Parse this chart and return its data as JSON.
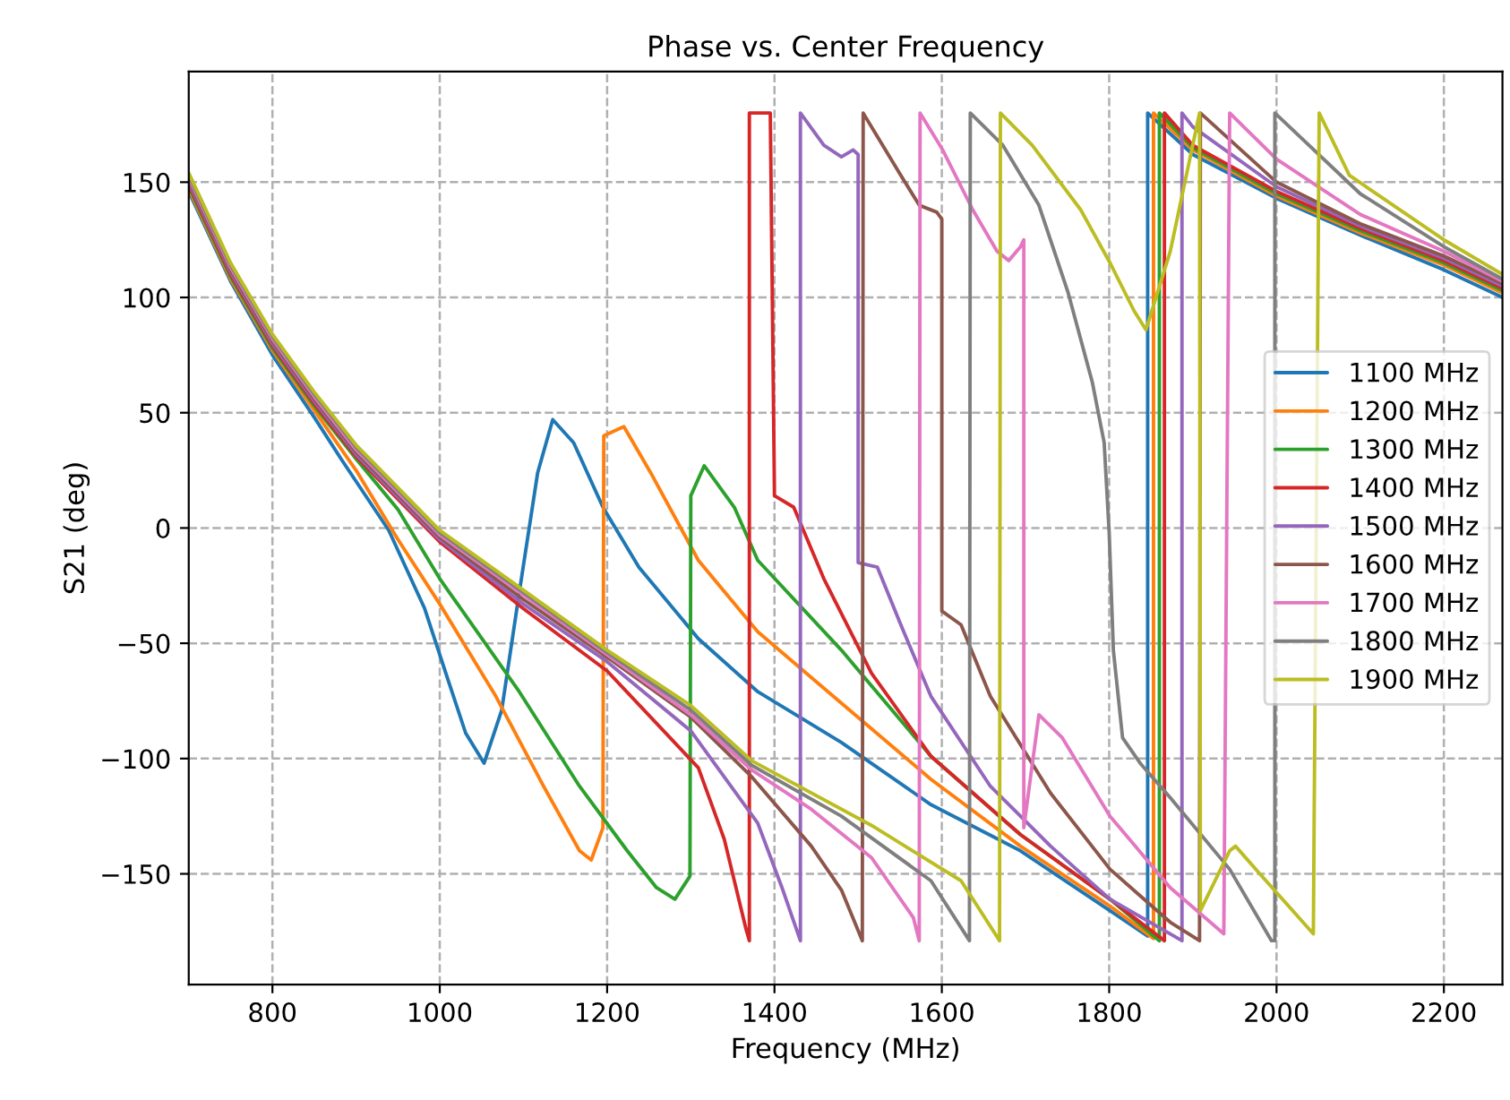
{
  "chart_data": {
    "type": "line",
    "title": "Phase vs. Center Frequency",
    "xlabel": "Frequency (MHz)",
    "ylabel": "S21 (deg)",
    "xlim": [
      700,
      2270
    ],
    "ylim": [
      -198,
      198
    ],
    "xticks": [
      800,
      1000,
      1200,
      1400,
      1600,
      1800,
      2000,
      2200
    ],
    "yticks": [
      {
        "value": -150,
        "label": "−150"
      },
      {
        "value": -100,
        "label": "−100"
      },
      {
        "value": -50,
        "label": "−50"
      },
      0,
      50,
      100,
      150
    ],
    "grid": true,
    "legend": "right",
    "line_style": "solid",
    "marker": "none",
    "series": [
      {
        "name": "1100 MHz",
        "color": "#1f77b4",
        "x": [
          700,
          750,
          800,
          850,
          882,
          939,
          982,
          1010,
          1031,
          1053,
          1074,
          1095,
          1117,
          1135,
          1160,
          1195,
          1238,
          1309,
          1380,
          1480,
          1587,
          1694,
          1801,
          1846,
          1846,
          1900,
          2000,
          2100,
          2200,
          2270
        ],
        "values": [
          146,
          107,
          75,
          48,
          30,
          -1,
          -35,
          -66,
          -89,
          -102,
          -79,
          -28,
          24,
          47,
          37,
          9,
          -17,
          -48,
          -71,
          -93,
          -120,
          -140,
          -166,
          -177,
          180,
          162,
          143,
          127,
          112,
          100
        ]
      },
      {
        "name": "1200 MHz",
        "color": "#ff7f0e",
        "x": [
          700,
          750,
          800,
          850,
          900,
          950,
          1000,
          1067,
          1124,
          1167,
          1181,
          1195,
          1196,
          1220,
          1252,
          1309,
          1380,
          1480,
          1587,
          1694,
          1801,
          1853,
          1853,
          1900,
          2000,
          2100,
          2200,
          2270
        ],
        "values": [
          147,
          108,
          77,
          51,
          25,
          -5,
          -33,
          -73,
          -112,
          -140,
          -144,
          -130,
          40,
          44,
          24,
          -14,
          -45,
          -76,
          -109,
          -138,
          -164,
          -178,
          180,
          164,
          144,
          128,
          114,
          102
        ]
      },
      {
        "name": "1300 MHz",
        "color": "#2ca02c",
        "x": [
          700,
          750,
          800,
          850,
          900,
          950,
          1000,
          1095,
          1167,
          1224,
          1259,
          1281,
          1299,
          1300,
          1316,
          1352,
          1380,
          1480,
          1587,
          1694,
          1801,
          1860,
          1860,
          1900,
          2000,
          2100,
          2200,
          2270
        ],
        "values": [
          148,
          109,
          78,
          53,
          30,
          8,
          -22,
          -71,
          -112,
          -140,
          -156,
          -161,
          -151,
          14,
          27,
          9,
          -14,
          -53,
          -99,
          -133,
          -161,
          -179,
          180,
          165,
          145,
          129,
          115,
          103
        ]
      },
      {
        "name": "1400 MHz",
        "color": "#d62728",
        "x": [
          700,
          750,
          800,
          850,
          900,
          1000,
          1100,
          1200,
          1309,
          1340,
          1366,
          1370,
          1370,
          1395,
          1400,
          1423,
          1459,
          1516,
          1587,
          1694,
          1801,
          1866,
          1866,
          1900,
          2000,
          2100,
          2200,
          2270
        ],
        "values": [
          149,
          110,
          79,
          54,
          31,
          -6,
          -35,
          -62,
          -104,
          -135,
          -174,
          -179,
          180,
          180,
          14,
          9,
          -22,
          -63,
          -99,
          -133,
          -161,
          -179,
          180,
          166,
          146,
          130,
          116,
          104
        ]
      },
      {
        "name": "1500 MHz",
        "color": "#9467bd",
        "x": [
          700,
          750,
          800,
          850,
          900,
          1000,
          1100,
          1200,
          1300,
          1380,
          1409,
          1431,
          1431,
          1459,
          1480,
          1494,
          1500,
          1500,
          1523,
          1551,
          1587,
          1658,
          1730,
          1801,
          1887,
          1887,
          1900,
          2000,
          2100,
          2200,
          2270
        ],
        "values": [
          150,
          111,
          80,
          55,
          32,
          -5,
          -33,
          -58,
          -88,
          -128,
          -156,
          -179,
          180,
          166,
          161,
          164,
          162,
          -15,
          -17,
          -42,
          -73,
          -112,
          -138,
          -161,
          -179,
          180,
          174,
          148,
          131,
          117,
          105
        ]
      },
      {
        "name": "1600 MHz",
        "color": "#8c564b",
        "x": [
          700,
          750,
          800,
          850,
          900,
          1000,
          1100,
          1200,
          1300,
          1373,
          1444,
          1480,
          1505,
          1506,
          1551,
          1573,
          1594,
          1600,
          1600,
          1623,
          1658,
          1730,
          1801,
          1873,
          1908,
          1909,
          2000,
          2100,
          2200,
          2270
        ],
        "values": [
          151,
          112,
          81,
          56,
          33,
          -4,
          -31,
          -56,
          -82,
          -108,
          -138,
          -157,
          -179,
          180,
          153,
          140,
          137,
          134,
          -36,
          -42,
          -73,
          -115,
          -148,
          -171,
          -179,
          180,
          150,
          132,
          118,
          106
        ]
      },
      {
        "name": "1700 MHz",
        "color": "#e377c2",
        "x": [
          700,
          750,
          800,
          850,
          900,
          1000,
          1100,
          1200,
          1300,
          1373,
          1444,
          1516,
          1566,
          1573,
          1574,
          1601,
          1637,
          1666,
          1680,
          1694,
          1698,
          1698,
          1716,
          1744,
          1801,
          1873,
          1937,
          1944,
          2000,
          2100,
          2200,
          2270
        ],
        "values": [
          152,
          113,
          82,
          57,
          34,
          -3,
          -29,
          -55,
          -81,
          -105,
          -122,
          -143,
          -169,
          -179,
          180,
          164,
          138,
          120,
          116,
          122,
          125,
          -130,
          -81,
          -91,
          -125,
          -156,
          -176,
          180,
          160,
          136,
          120,
          107
        ]
      },
      {
        "name": "1800 MHz",
        "color": "#7f7f7f",
        "x": [
          700,
          750,
          800,
          850,
          900,
          1000,
          1100,
          1200,
          1300,
          1373,
          1480,
          1587,
          1633,
          1634,
          1673,
          1716,
          1751,
          1780,
          1794,
          1800,
          1805,
          1816,
          1837,
          1873,
          1944,
          1994,
          1998,
          1998,
          2100,
          2200,
          2270
        ],
        "values": [
          153,
          114,
          83,
          58,
          35,
          -2,
          -28,
          -54,
          -79,
          -103,
          -125,
          -153,
          -179,
          180,
          166,
          140,
          102,
          63,
          37,
          -2,
          -53,
          -91,
          -102,
          -117,
          -148,
          -179,
          -179,
          180,
          145,
          122,
          108
        ]
      },
      {
        "name": "1900 MHz",
        "color": "#bcbd22",
        "x": [
          700,
          750,
          800,
          850,
          900,
          1000,
          1100,
          1200,
          1300,
          1373,
          1516,
          1623,
          1669,
          1670,
          1708,
          1766,
          1801,
          1830,
          1844,
          1873,
          1908,
          1909,
          1944,
          1951,
          1980,
          2044,
          2051,
          2087,
          2200,
          2270
        ],
        "values": [
          154,
          115,
          84,
          59,
          36,
          -1,
          -27,
          -53,
          -77,
          -101,
          -129,
          -153,
          -179,
          180,
          166,
          138,
          115,
          94,
          86,
          120,
          180,
          -166,
          -140,
          -138,
          -150,
          -176,
          180,
          153,
          125,
          110
        ]
      }
    ]
  }
}
